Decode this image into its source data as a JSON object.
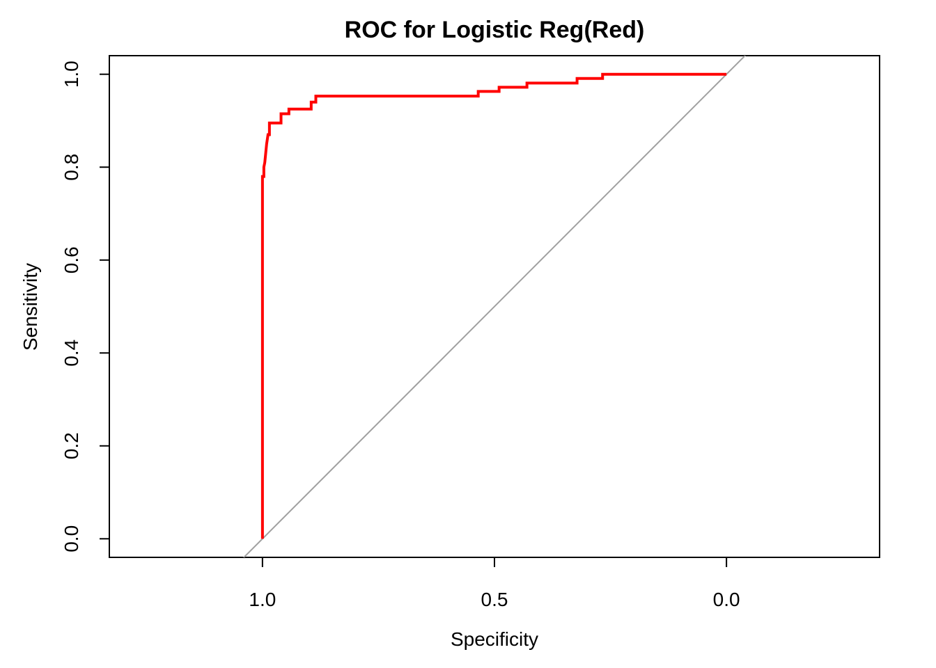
{
  "chart_data": {
    "type": "line",
    "title": "ROC for Logistic Reg(Red)",
    "xlabel": "Specificity",
    "ylabel": "Sensitivity",
    "x_reversed": true,
    "xlim": [
      1.33,
      -0.33
    ],
    "ylim": [
      -0.04,
      1.04
    ],
    "x_ticks": [
      {
        "value": 1.0,
        "label": "1.0"
      },
      {
        "value": 0.5,
        "label": "0.5"
      },
      {
        "value": 0.0,
        "label": "0.0"
      }
    ],
    "y_ticks": [
      {
        "value": 0.0,
        "label": "0.0"
      },
      {
        "value": 0.2,
        "label": "0.2"
      },
      {
        "value": 0.4,
        "label": "0.4"
      },
      {
        "value": 0.6,
        "label": "0.6"
      },
      {
        "value": 0.8,
        "label": "0.8"
      },
      {
        "value": 1.0,
        "label": "1.0"
      }
    ],
    "grid": false,
    "reference_line": {
      "description": "diagonal sensitivity = 1 - specificity",
      "color": "#a0a0a0"
    },
    "series": [
      {
        "color": "#ff0000",
        "points": [
          {
            "x": 1.0,
            "y": 0.0
          },
          {
            "x": 1.0,
            "y": 0.78
          },
          {
            "x": 0.997,
            "y": 0.78
          },
          {
            "x": 0.997,
            "y": 0.8
          },
          {
            "x": 0.995,
            "y": 0.81
          },
          {
            "x": 0.993,
            "y": 0.83
          },
          {
            "x": 0.991,
            "y": 0.85
          },
          {
            "x": 0.988,
            "y": 0.87
          },
          {
            "x": 0.985,
            "y": 0.87
          },
          {
            "x": 0.985,
            "y": 0.895
          },
          {
            "x": 0.96,
            "y": 0.895
          },
          {
            "x": 0.96,
            "y": 0.915
          },
          {
            "x": 0.943,
            "y": 0.915
          },
          {
            "x": 0.943,
            "y": 0.925
          },
          {
            "x": 0.895,
            "y": 0.925
          },
          {
            "x": 0.895,
            "y": 0.94
          },
          {
            "x": 0.885,
            "y": 0.94
          },
          {
            "x": 0.885,
            "y": 0.953
          },
          {
            "x": 0.535,
            "y": 0.953
          },
          {
            "x": 0.535,
            "y": 0.963
          },
          {
            "x": 0.49,
            "y": 0.963
          },
          {
            "x": 0.49,
            "y": 0.972
          },
          {
            "x": 0.43,
            "y": 0.972
          },
          {
            "x": 0.43,
            "y": 0.981
          },
          {
            "x": 0.322,
            "y": 0.981
          },
          {
            "x": 0.322,
            "y": 0.991
          },
          {
            "x": 0.267,
            "y": 0.991
          },
          {
            "x": 0.267,
            "y": 1.0
          },
          {
            "x": 0.0,
            "y": 1.0
          }
        ]
      }
    ]
  }
}
